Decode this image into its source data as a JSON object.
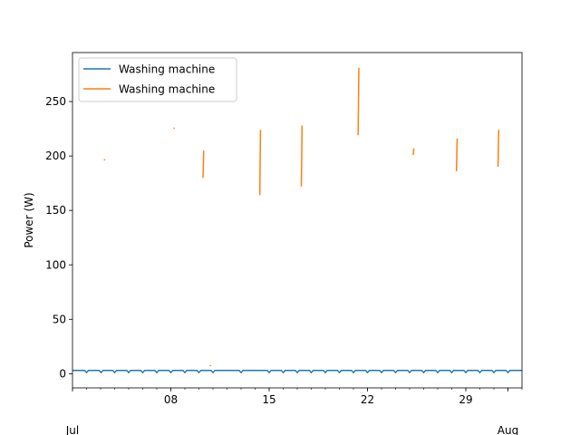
{
  "chart_data": {
    "type": "line",
    "xlabel": "",
    "ylabel": "Power (W)",
    "x_start": "2011-07-01",
    "x_end": "2011-08-02",
    "ylim": [
      -13,
      295
    ],
    "grid": false,
    "legend_position": "upper-left",
    "x_major_ticks": [
      {
        "date": "2011-07-08",
        "label": "08"
      },
      {
        "date": "2011-07-15",
        "label": "15"
      },
      {
        "date": "2011-07-22",
        "label": "22"
      },
      {
        "date": "2011-07-29",
        "label": "29"
      }
    ],
    "x_month_labels": [
      {
        "date": "2011-07-01",
        "label": "Jul"
      },
      {
        "date": "2011-08-01",
        "label": "Aug"
      }
    ],
    "y_ticks": [
      0,
      50,
      100,
      150,
      200,
      250
    ],
    "series": [
      {
        "name": "Washing machine",
        "color": "#1f77b4",
        "style": "line",
        "baseline": 3,
        "dip": 1,
        "dip_times": [
          "2011-07-02T00:00",
          "2011-07-03T01:00",
          "2011-07-04T00:00",
          "2011-07-05T00:00",
          "2011-07-06T00:00",
          "2011-07-07T00:00",
          "2011-07-08T00:00",
          "2011-07-09T00:00",
          "2011-07-10T00:00",
          "2011-07-11T00:00",
          "2011-07-13T00:00",
          "2011-07-15T00:00",
          "2011-07-16T00:00",
          "2011-07-17T00:00",
          "2011-07-18T00:00",
          "2011-07-19T00:00",
          "2011-07-20T00:00",
          "2011-07-21T00:00",
          "2011-07-22T00:00",
          "2011-07-23T00:00",
          "2011-07-24T00:00",
          "2011-07-25T00:00",
          "2011-07-26T00:00",
          "2011-07-27T00:00",
          "2011-07-28T00:00",
          "2011-07-29T00:00",
          "2011-07-30T00:00",
          "2011-07-31T00:00",
          "2011-08-01T00:00"
        ]
      },
      {
        "name": "Washing machine",
        "color": "#ff7f0e",
        "style": "segments",
        "segments": [
          {
            "t": "2011-07-03T06:00",
            "y1": 196,
            "y2": 197
          },
          {
            "t": "2011-07-08T05:00",
            "y1": 225,
            "y2": 226
          },
          {
            "t": "2011-07-10T07:00",
            "y1": 180,
            "y2": 205
          },
          {
            "t": "2011-07-10T19:00",
            "y1": 7,
            "y2": 8
          },
          {
            "t": "2011-07-14T08:00",
            "y1": 164,
            "y2": 224
          },
          {
            "t": "2011-07-17T07:00",
            "y1": 172,
            "y2": 228
          },
          {
            "t": "2011-07-21T08:00",
            "y1": 219,
            "y2": 281
          },
          {
            "t": "2011-07-25T06:00",
            "y1": 201,
            "y2": 207
          },
          {
            "t": "2011-07-28T08:00",
            "y1": 186,
            "y2": 216
          },
          {
            "t": "2011-07-31T07:00",
            "y1": 190,
            "y2": 224
          }
        ]
      }
    ]
  }
}
